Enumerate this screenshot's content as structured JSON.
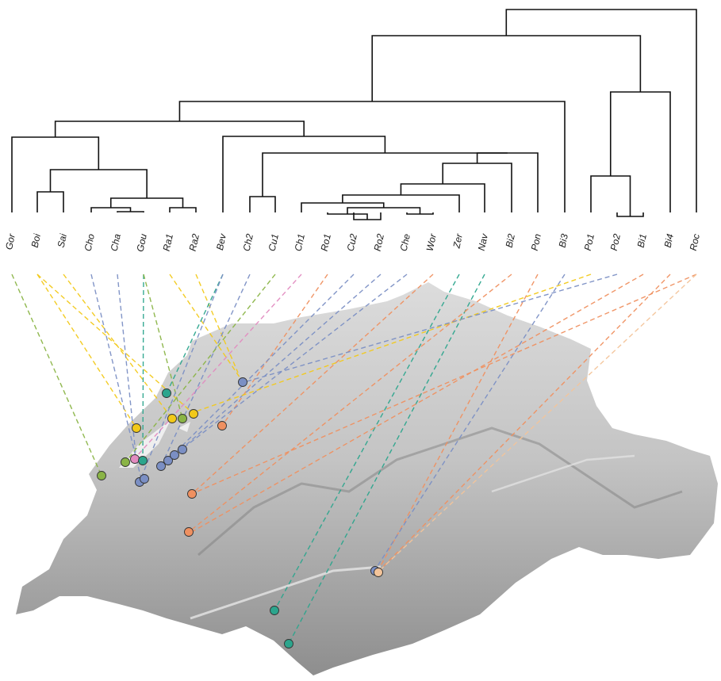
{
  "leaves": [
    "Gor",
    "Boi",
    "Sai",
    "Cho",
    "Cha",
    "Gou",
    "Ra1",
    "Ra2",
    "Bev",
    "Ch2",
    "Cu1",
    "Ch1",
    "Ro1",
    "Cu2",
    "Ro2",
    "Che",
    "Wor",
    "Zer",
    "Nav",
    "Bi2",
    "Pon",
    "Bi3",
    "Po1",
    "Po2",
    "Bi1",
    "Bi4",
    "Roc"
  ],
  "clusters": {
    "green": "#8ab446",
    "yellow": "#f2c919",
    "blue": "#7b8fc4",
    "teal": "#2ca58d",
    "pink": "#e28bc0",
    "orange": "#ef9060",
    "peach": "#f3c49a"
  }
}
